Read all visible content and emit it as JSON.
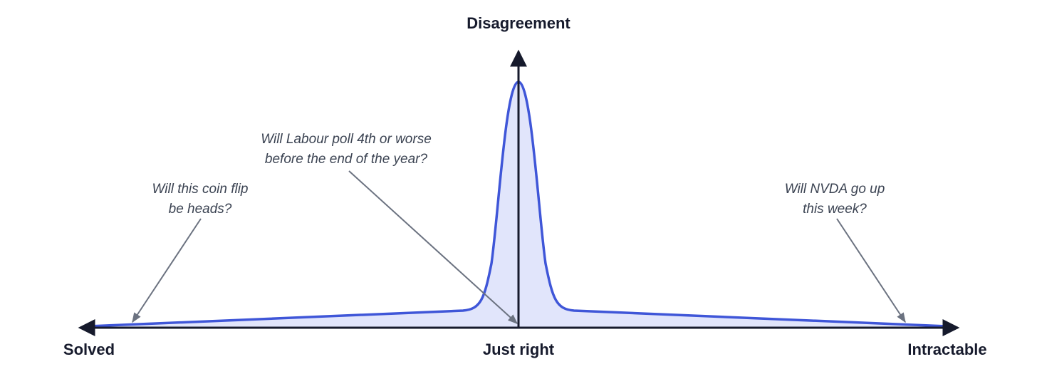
{
  "axes": {
    "y_label": "Disagreement",
    "x_left": "Solved",
    "x_center": "Just right",
    "x_right": "Intractable"
  },
  "annotations": [
    {
      "lines": [
        "Will this coin flip",
        "be heads?"
      ]
    },
    {
      "lines": [
        "Will Labour poll 4th or worse",
        "before the end of the year?"
      ]
    },
    {
      "lines": [
        "Will NVDA go up",
        "this week?"
      ]
    }
  ]
}
